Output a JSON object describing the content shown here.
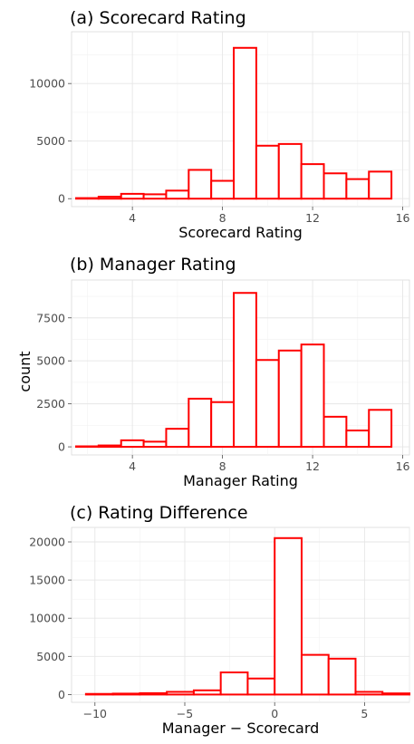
{
  "ylabel": "count",
  "colors": {
    "bar_outline": "#ff0000",
    "bar_fill": "#ffffff",
    "grid": "#e6e6e6"
  },
  "chart_data": [
    {
      "type": "bar",
      "title": "(a) Scorecard Rating",
      "xlabel": "Scorecard Rating",
      "ylabel": "count",
      "xlim": [
        1.3,
        16.3
      ],
      "ylim": [
        -690,
        14500
      ],
      "xticks": [
        4,
        8,
        12,
        16
      ],
      "yticks": [
        0,
        5000,
        10000
      ],
      "x_tick_labels": [
        "4",
        "8",
        "12",
        "16"
      ],
      "y_tick_labels": [
        "0",
        "5000",
        "10000"
      ],
      "bin_width": 1,
      "x": [
        2,
        3,
        4,
        5,
        6,
        7,
        8,
        9,
        10,
        11,
        12,
        13,
        14,
        15
      ],
      "values": [
        50,
        170,
        420,
        380,
        700,
        2500,
        1550,
        13100,
        4600,
        4750,
        3000,
        2200,
        1700,
        2350
      ]
    },
    {
      "type": "bar",
      "title": "(b) Manager Rating",
      "xlabel": "Manager Rating",
      "ylabel": "count",
      "xlim": [
        1.3,
        16.3
      ],
      "ylim": [
        -470,
        9700
      ],
      "xticks": [
        4,
        8,
        12,
        16
      ],
      "yticks": [
        0,
        2500,
        5000,
        7500
      ],
      "x_tick_labels": [
        "4",
        "8",
        "12",
        "16"
      ],
      "y_tick_labels": [
        "0",
        "2500",
        "5000",
        "7500"
      ],
      "bin_width": 1,
      "x": [
        2,
        3,
        4,
        5,
        6,
        7,
        8,
        9,
        10,
        11,
        12,
        13,
        14,
        15
      ],
      "values": [
        30,
        80,
        380,
        300,
        1050,
        2800,
        2600,
        8950,
        5050,
        5600,
        5950,
        1750,
        950,
        2150
      ]
    },
    {
      "type": "bar",
      "title": "(c) Rating Difference",
      "xlabel": "Manager − Scorecard",
      "ylabel": "count",
      "xlim": [
        -11.3,
        7.5
      ],
      "ylim": [
        -1020,
        21900
      ],
      "xticks": [
        -10,
        -5,
        0,
        5
      ],
      "yticks": [
        0,
        5000,
        10000,
        15000,
        20000
      ],
      "x_tick_labels": [
        "−10",
        "−5",
        "0",
        "5"
      ],
      "y_tick_labels": [
        "0",
        "5000",
        "10000",
        "15000",
        "20000"
      ],
      "bin_width": 1.5,
      "x": [
        -9.75,
        -8.25,
        -6.75,
        -5.25,
        -3.75,
        -2.25,
        -0.75,
        0.75,
        2.25,
        3.75,
        5.25,
        6.75
      ],
      "values": [
        80,
        120,
        180,
        350,
        550,
        2900,
        2100,
        20500,
        5200,
        4700,
        350,
        150
      ]
    }
  ]
}
